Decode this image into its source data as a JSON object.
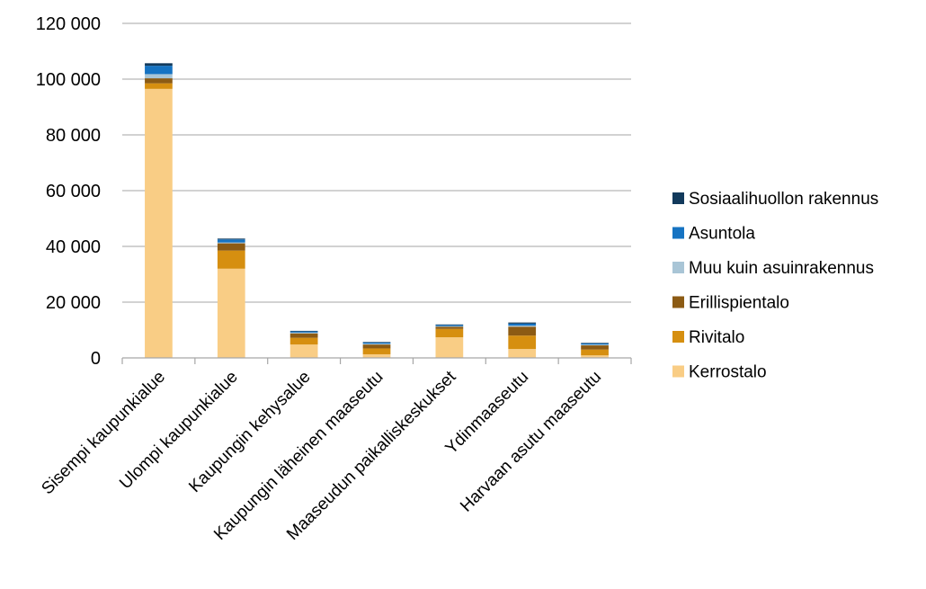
{
  "chart_data": {
    "type": "bar",
    "stacked": true,
    "categories": [
      "Sisempi kaupunkialue",
      "Ulompi kaupunkialue",
      "Kaupungin kehysalue",
      "Kaupungin läheinen maaseutu",
      "Maaseudun paikalliskeskukset",
      "Ydinmaaseutu",
      "Harvaan asutu maaseutu"
    ],
    "series": [
      {
        "name": "Kerrostalo",
        "color": "#f9cd85",
        "values": [
          96500,
          32000,
          4800,
          1300,
          7400,
          3200,
          900
        ]
      },
      {
        "name": "Rivitalo",
        "color": "#d68f10",
        "values": [
          2000,
          6500,
          2400,
          2100,
          3000,
          4800,
          2100
        ]
      },
      {
        "name": "Erillispientalo",
        "color": "#8c5b14",
        "values": [
          1800,
          2600,
          1600,
          1400,
          800,
          3200,
          1500
        ]
      },
      {
        "name": "Muu kuin asuinrakennus",
        "color": "#a9c5d6",
        "values": [
          1500,
          300,
          300,
          300,
          200,
          400,
          300
        ]
      },
      {
        "name": "Asuntola",
        "color": "#1673c2",
        "values": [
          3000,
          1100,
          400,
          400,
          400,
          700,
          400
        ]
      },
      {
        "name": "Sosiaalihuollon rakennus",
        "color": "#123a5c",
        "values": [
          900,
          300,
          200,
          200,
          200,
          400,
          200
        ]
      }
    ],
    "yaxis": {
      "min": 0,
      "max": 120000,
      "ticks": [
        0,
        20000,
        40000,
        60000,
        80000,
        100000,
        120000
      ],
      "tick_labels": [
        "0",
        "20 000",
        "40 000",
        "60 000",
        "80 000",
        "100 000",
        "120 000"
      ]
    },
    "grid": true,
    "legend_position": "right",
    "legend_order": [
      "Sosiaalihuollon rakennus",
      "Asuntola",
      "Muu kuin asuinrakennus",
      "Erillispientalo",
      "Rivitalo",
      "Kerrostalo"
    ]
  }
}
